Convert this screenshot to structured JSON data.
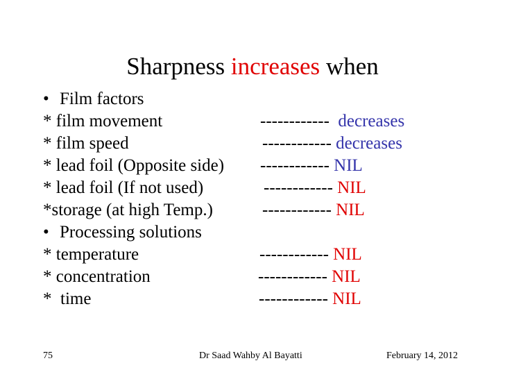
{
  "title": {
    "prefix": "Sharpness ",
    "highlight": "increases",
    "suffix": " when"
  },
  "sections": [
    {
      "heading": "Film factors",
      "items": [
        {
          "label": "* film movement",
          "dashes": "------------",
          "value": "decreases"
        },
        {
          "label": "* film speed",
          "dashes": "------------",
          "value": "decreases"
        },
        {
          "label": "* lead foil (Opposite side)",
          "dashes": "------------",
          "value": "NIL"
        },
        {
          "label": "* lead foil (If not used)",
          "dashes": "------------",
          "value": "NIL"
        },
        {
          "label": "*storage (at high Temp.)",
          "dashes": "------------",
          "value": "NIL"
        }
      ]
    },
    {
      "heading": "Processing solutions",
      "items": [
        {
          "label": "* temperature",
          "dashes": "------------",
          "value": "NIL"
        },
        {
          "label": "* concentration",
          "dashes": "------------",
          "value": "NIL"
        },
        {
          "label": "*  time",
          "dashes": "------------",
          "value": "NIL"
        }
      ]
    }
  ],
  "bullet_char": "•",
  "footer": {
    "page_number": "75",
    "author": "Dr Saad Wahby Al Bayatti",
    "date": "February 14, 2012"
  },
  "colors": {
    "highlight_red": "#e00000",
    "value_blue": "#3333aa"
  }
}
